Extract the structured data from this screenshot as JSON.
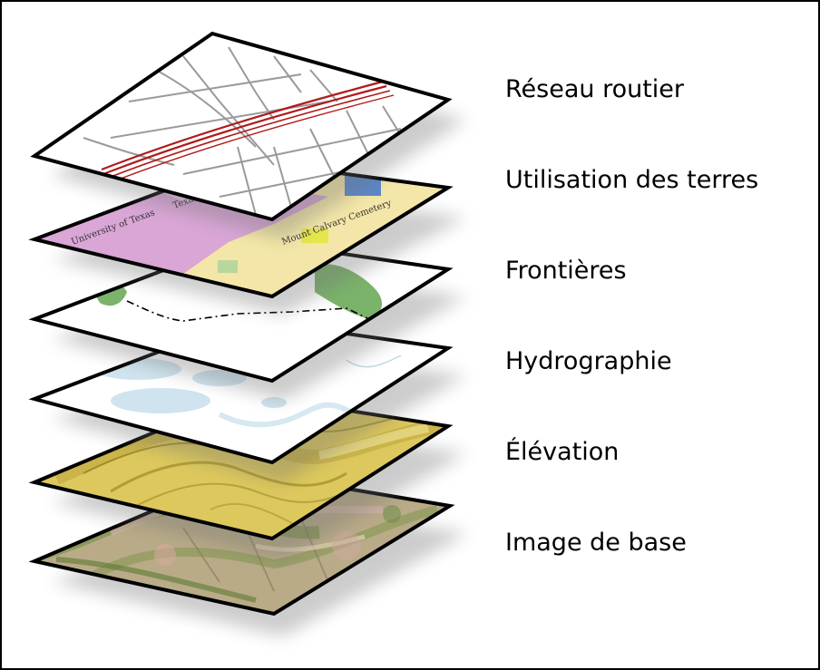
{
  "layers": [
    {
      "label": "Réseau routier"
    },
    {
      "label": "Utilisation des terres"
    },
    {
      "label": "Frontières"
    },
    {
      "label": "Hydrographie"
    },
    {
      "label": "Élévation"
    },
    {
      "label": "Image de base"
    }
  ],
  "map_text": {
    "stadium": "Texas Memorial Stadium",
    "university": "University of Texas",
    "cemetery": "Mount Calvary Cemetery"
  },
  "colors": {
    "frame": "#000000",
    "road_line": "#9a9a9a",
    "highway": "#b01a1a",
    "landuse_pink": "#d9a6d6",
    "landuse_yellow": "#f3e6a8",
    "landuse_blue": "#5b86c8",
    "boundary_green": "#7bb36b",
    "water_blue": "#cfe4ee",
    "elevation_yellow": "#d8c252",
    "base_image": "#b7a98a"
  }
}
